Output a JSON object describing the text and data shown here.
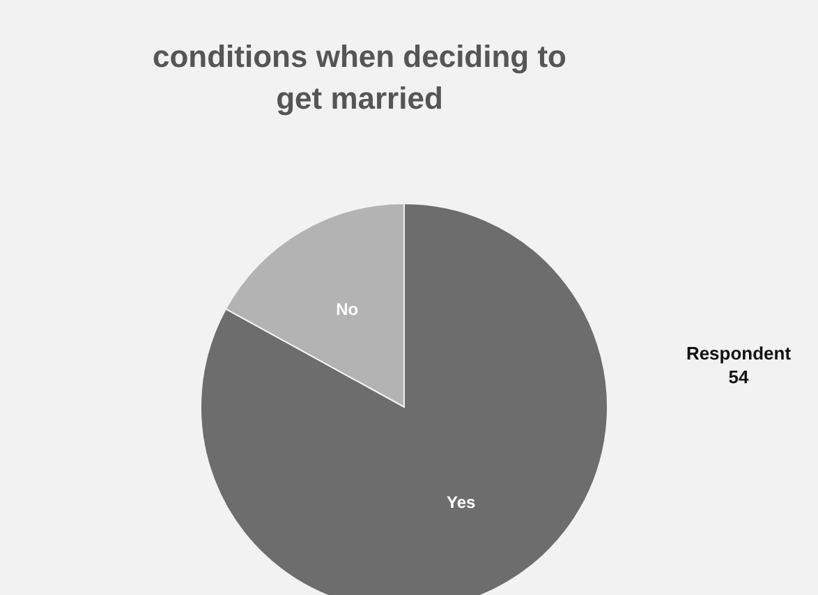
{
  "chart_data": {
    "type": "pie",
    "title": "conditions when deciding to get married",
    "categories": [
      "Yes",
      "No"
    ],
    "values": [
      83,
      17
    ],
    "colors": [
      "#6d6d6d",
      "#b3b3b3"
    ],
    "annotations": [
      "Respondent 54"
    ]
  }
}
